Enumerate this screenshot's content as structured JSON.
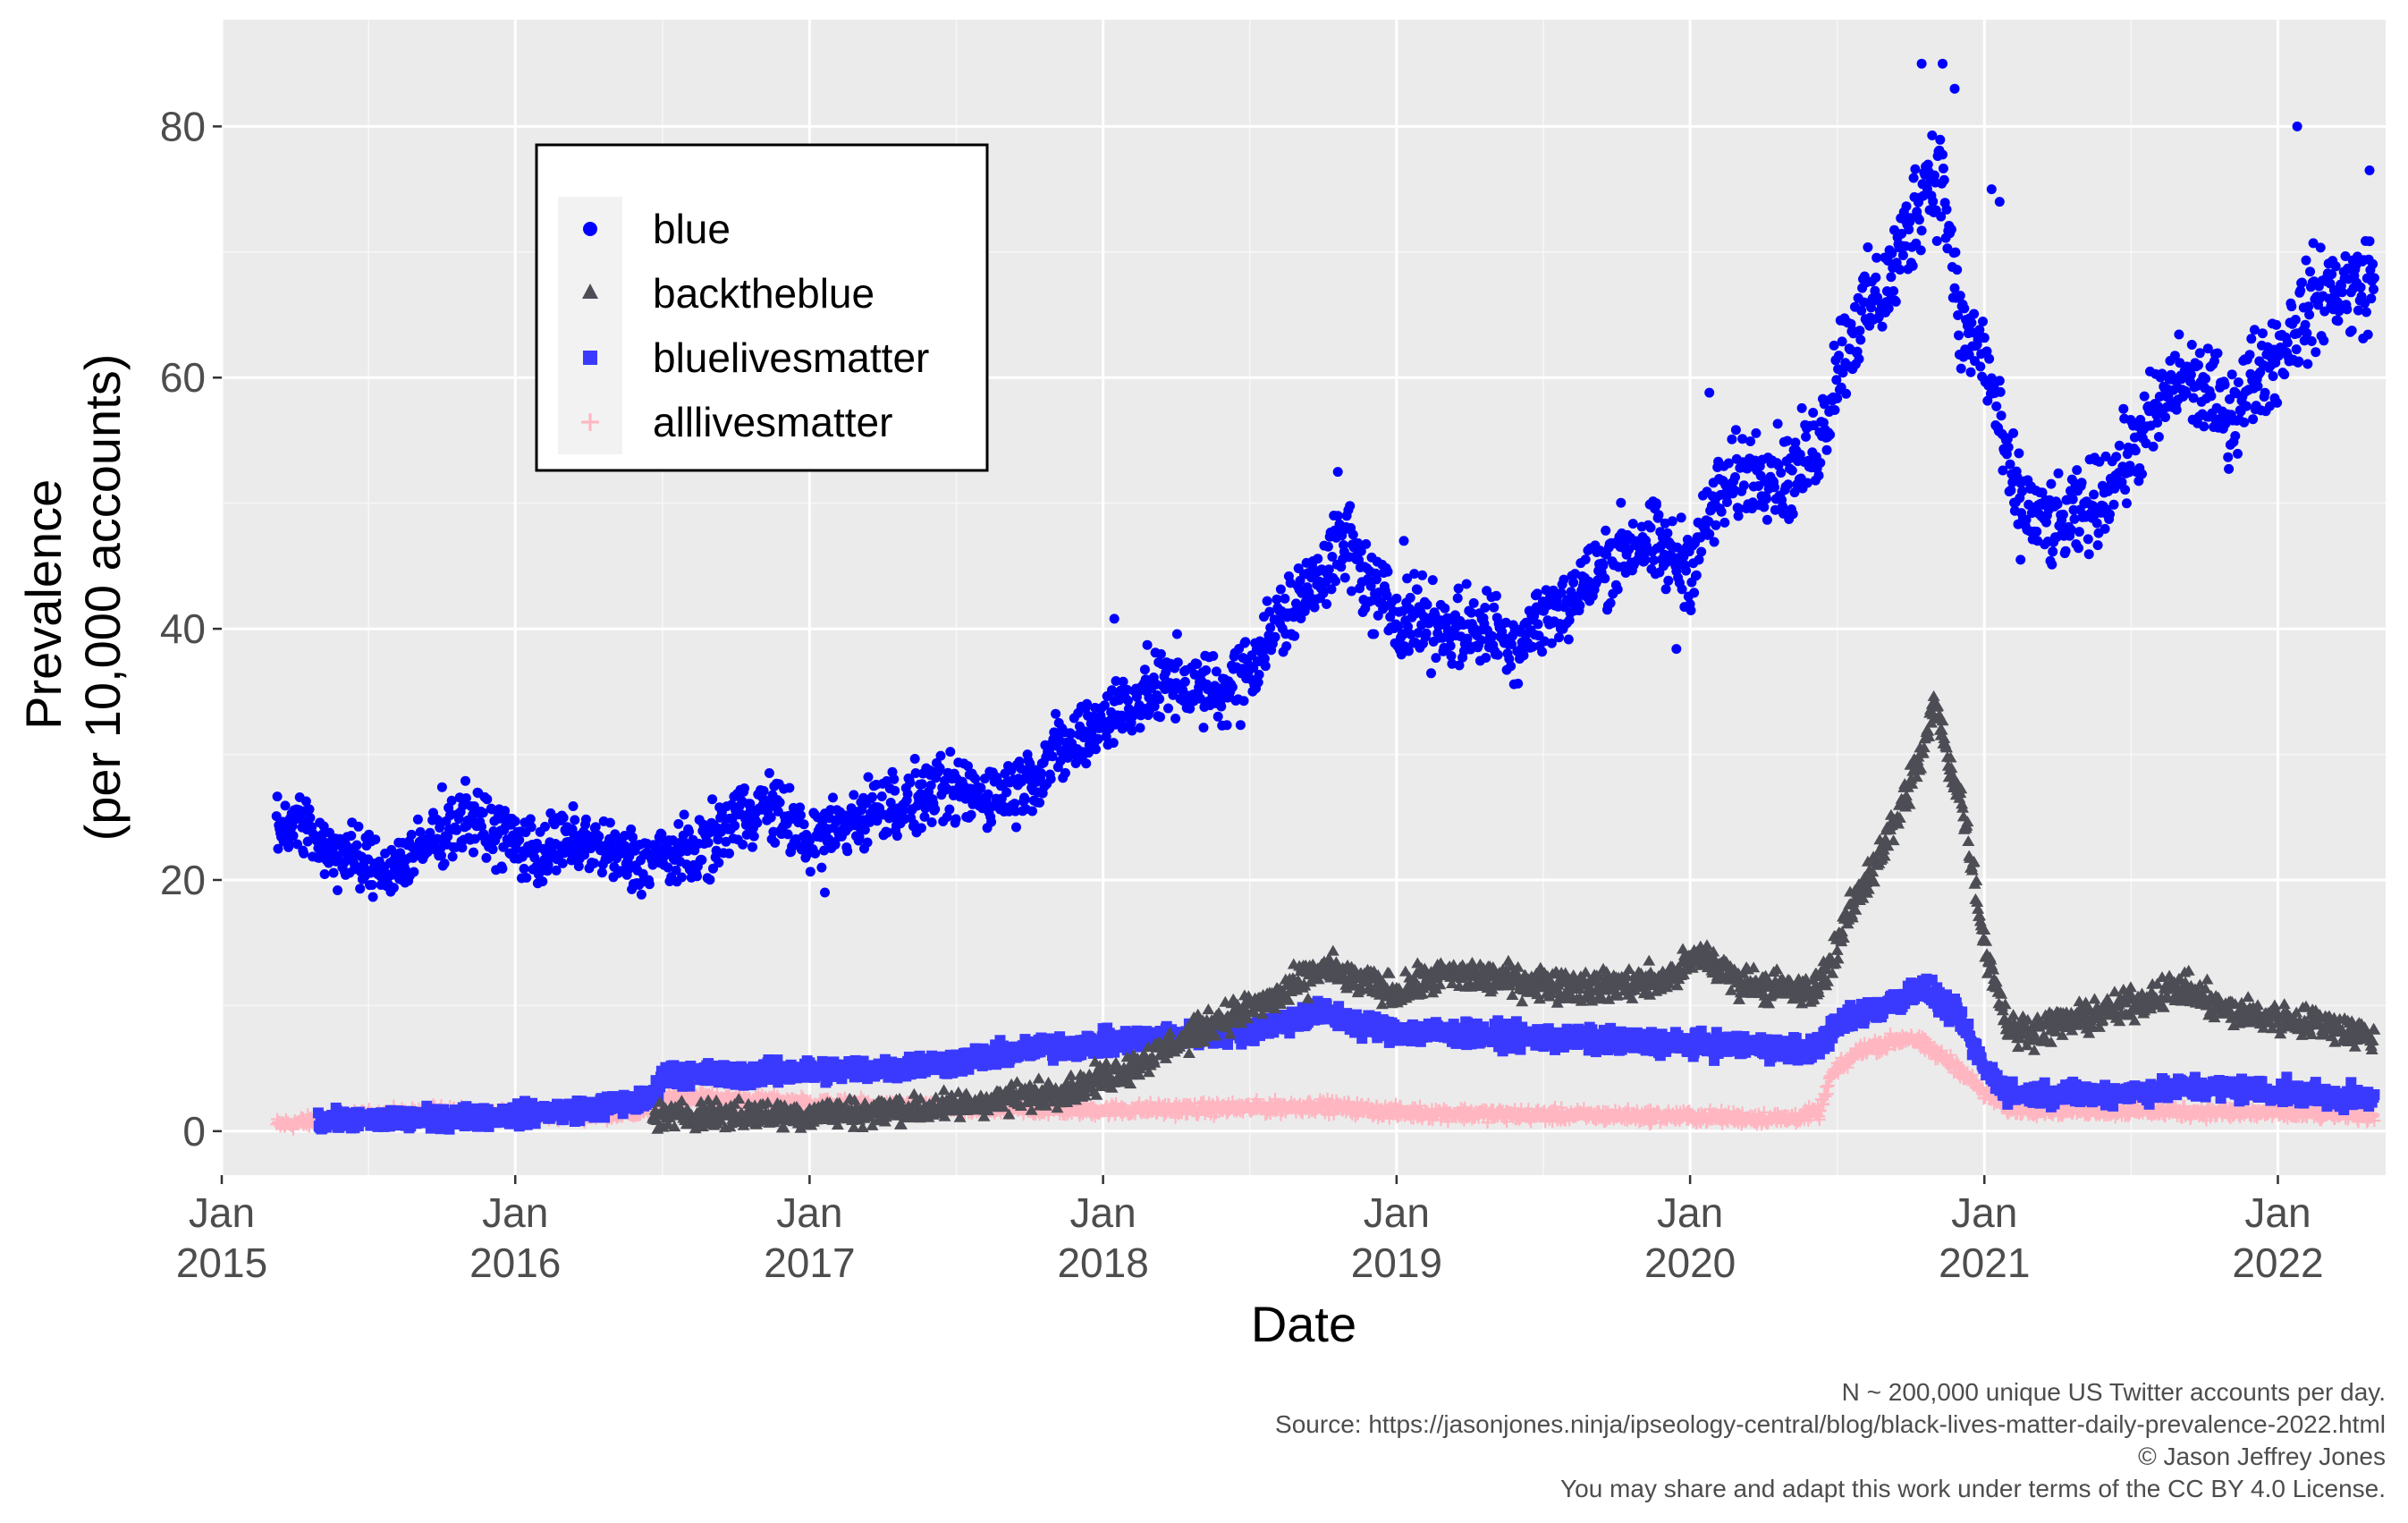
{
  "chart_data": {
    "type": "scatter",
    "title": "",
    "xlabel": "Date",
    "ylabel_lines": [
      "Prevalence",
      "(per 10,000 accounts)"
    ],
    "x_range": [
      "2015-01-01",
      "2022-05-15"
    ],
    "ylim": [
      -3.5,
      88.5
    ],
    "y_ticks": [
      0,
      20,
      40,
      60,
      80
    ],
    "x_ticks": [
      {
        "date": "2015-01-01",
        "month": "Jan",
        "year": "2015"
      },
      {
        "date": "2016-01-01",
        "month": "Jan",
        "year": "2016"
      },
      {
        "date": "2017-01-01",
        "month": "Jan",
        "year": "2017"
      },
      {
        "date": "2018-01-01",
        "month": "Jan",
        "year": "2018"
      },
      {
        "date": "2019-01-01",
        "month": "Jan",
        "year": "2019"
      },
      {
        "date": "2020-01-01",
        "month": "Jan",
        "year": "2020"
      },
      {
        "date": "2021-01-01",
        "month": "Jan",
        "year": "2021"
      },
      {
        "date": "2022-01-01",
        "month": "Jan",
        "year": "2022"
      }
    ],
    "grid": true,
    "legend_position": "top-left inside",
    "series": [
      {
        "name": "blue",
        "marker": "circle",
        "color": "#0000ff",
        "points": [
          [
            "2015-03-10",
            24
          ],
          [
            "2015-04-01",
            25
          ],
          [
            "2015-05-01",
            23
          ],
          [
            "2015-06-01",
            22
          ],
          [
            "2015-07-01",
            21
          ],
          [
            "2015-08-01",
            21
          ],
          [
            "2015-09-01",
            22
          ],
          [
            "2015-10-01",
            24
          ],
          [
            "2015-11-01",
            25
          ],
          [
            "2015-12-01",
            24
          ],
          [
            "2016-01-01",
            23
          ],
          [
            "2016-02-01",
            22
          ],
          [
            "2016-03-01",
            23
          ],
          [
            "2016-04-01",
            23
          ],
          [
            "2016-05-01",
            22
          ],
          [
            "2016-06-01",
            21.5
          ],
          [
            "2016-07-01",
            22
          ],
          [
            "2016-08-01",
            22
          ],
          [
            "2016-09-01",
            23
          ],
          [
            "2016-10-01",
            25
          ],
          [
            "2016-11-01",
            26
          ],
          [
            "2016-12-01",
            25
          ],
          [
            "2017-01-01",
            23
          ],
          [
            "2017-02-01",
            24
          ],
          [
            "2017-03-01",
            25
          ],
          [
            "2017-04-01",
            26
          ],
          [
            "2017-05-01",
            26
          ],
          [
            "2017-06-01",
            27
          ],
          [
            "2017-07-01",
            27
          ],
          [
            "2017-08-01",
            27
          ],
          [
            "2017-09-01",
            27
          ],
          [
            "2017-10-01",
            28
          ],
          [
            "2017-11-01",
            30
          ],
          [
            "2017-12-01",
            31
          ],
          [
            "2018-01-01",
            33
          ],
          [
            "2018-02-01",
            34
          ],
          [
            "2018-03-01",
            35
          ],
          [
            "2018-04-01",
            36
          ],
          [
            "2018-05-01",
            35
          ],
          [
            "2018-06-01",
            35
          ],
          [
            "2018-07-01",
            37
          ],
          [
            "2018-08-01",
            40
          ],
          [
            "2018-09-01",
            42
          ],
          [
            "2018-10-01",
            45
          ],
          [
            "2018-11-01",
            47
          ],
          [
            "2018-12-01",
            43
          ],
          [
            "2019-01-01",
            41
          ],
          [
            "2019-02-01",
            41
          ],
          [
            "2019-03-01",
            40
          ],
          [
            "2019-04-01",
            40
          ],
          [
            "2019-05-01",
            40
          ],
          [
            "2019-06-01",
            39
          ],
          [
            "2019-07-01",
            41
          ],
          [
            "2019-08-01",
            42
          ],
          [
            "2019-09-01",
            44
          ],
          [
            "2019-10-01",
            46
          ],
          [
            "2019-11-01",
            47
          ],
          [
            "2019-12-01",
            46
          ],
          [
            "2020-01-01",
            45
          ],
          [
            "2020-02-01",
            50
          ],
          [
            "2020-03-01",
            52
          ],
          [
            "2020-04-01",
            53
          ],
          [
            "2020-05-01",
            52
          ],
          [
            "2020-06-01",
            54
          ],
          [
            "2020-06-20",
            57
          ],
          [
            "2020-07-01",
            61
          ],
          [
            "2020-08-01",
            65
          ],
          [
            "2020-09-01",
            67
          ],
          [
            "2020-10-01",
            72
          ],
          [
            "2020-10-20",
            76
          ],
          [
            "2020-11-10",
            76
          ],
          [
            "2020-12-01",
            64
          ],
          [
            "2021-01-01",
            62
          ],
          [
            "2021-02-01",
            52
          ],
          [
            "2021-03-01",
            49
          ],
          [
            "2021-04-01",
            48
          ],
          [
            "2021-05-01",
            49
          ],
          [
            "2021-06-01",
            51
          ],
          [
            "2021-07-01",
            54
          ],
          [
            "2021-08-01",
            57
          ],
          [
            "2021-09-01",
            60
          ],
          [
            "2021-10-01",
            59
          ],
          [
            "2021-11-01",
            57
          ],
          [
            "2021-12-01",
            60
          ],
          [
            "2022-01-01",
            62
          ],
          [
            "2022-02-01",
            65
          ],
          [
            "2022-03-01",
            67
          ],
          [
            "2022-04-01",
            67
          ],
          [
            "2022-05-01",
            68
          ]
        ],
        "spread": 1.6,
        "outliers": [
          [
            "2017-01-20",
            19
          ],
          [
            "2018-01-15",
            40.8
          ],
          [
            "2018-10-20",
            52.5
          ],
          [
            "2019-01-10",
            47
          ],
          [
            "2019-11-20",
            50
          ],
          [
            "2019-12-15",
            38.4
          ],
          [
            "2020-01-25",
            58.8
          ],
          [
            "2020-10-15",
            85
          ],
          [
            "2020-11-10",
            85
          ],
          [
            "2020-11-25",
            83
          ],
          [
            "2021-01-10",
            75
          ],
          [
            "2021-01-20",
            74
          ],
          [
            "2021-02-15",
            45.5
          ],
          [
            "2022-01-25",
            80
          ],
          [
            "2022-04-25",
            76.5
          ]
        ]
      },
      {
        "name": "backtheblue",
        "marker": "triangle",
        "color": "#4d4d55",
        "points": [
          [
            "2016-06-20",
            1.2
          ],
          [
            "2016-09-01",
            1.3
          ],
          [
            "2016-12-01",
            1.3
          ],
          [
            "2017-03-01",
            1.5
          ],
          [
            "2017-06-01",
            1.8
          ],
          [
            "2017-09-01",
            2.5
          ],
          [
            "2017-12-01",
            3.5
          ],
          [
            "2018-02-01",
            5
          ],
          [
            "2018-04-01",
            7
          ],
          [
            "2018-06-01",
            9
          ],
          [
            "2018-08-01",
            10.5
          ],
          [
            "2018-10-01",
            13
          ],
          [
            "2018-11-15",
            12
          ],
          [
            "2019-01-01",
            11
          ],
          [
            "2019-03-01",
            12.5
          ],
          [
            "2019-06-01",
            12
          ],
          [
            "2019-09-01",
            11.5
          ],
          [
            "2019-12-01",
            12
          ],
          [
            "2020-01-15",
            14
          ],
          [
            "2020-03-01",
            12
          ],
          [
            "2020-06-01",
            11
          ],
          [
            "2020-06-20",
            13
          ],
          [
            "2020-07-15",
            17
          ],
          [
            "2020-08-15",
            21
          ],
          [
            "2020-09-15",
            25
          ],
          [
            "2020-10-15",
            30
          ],
          [
            "2020-11-01",
            34
          ],
          [
            "2020-11-15",
            30
          ],
          [
            "2020-12-01",
            27
          ],
          [
            "2020-12-15",
            22
          ],
          [
            "2021-01-01",
            15
          ],
          [
            "2021-02-01",
            8
          ],
          [
            "2021-03-01",
            8
          ],
          [
            "2021-05-01",
            9
          ],
          [
            "2021-07-01",
            10
          ],
          [
            "2021-09-01",
            11.5
          ],
          [
            "2021-11-01",
            9.5
          ],
          [
            "2022-01-01",
            9
          ],
          [
            "2022-03-01",
            8.5
          ],
          [
            "2022-05-01",
            7.5
          ]
        ],
        "spread": 0.9
      },
      {
        "name": "bluelivesmatter",
        "marker": "square",
        "color": "#3a3aff",
        "points": [
          [
            "2015-05-01",
            0.8
          ],
          [
            "2015-09-01",
            1.0
          ],
          [
            "2016-01-01",
            1.3
          ],
          [
            "2016-04-01",
            1.8
          ],
          [
            "2016-06-20",
            2.5
          ],
          [
            "2016-07-01",
            4.5
          ],
          [
            "2016-10-01",
            4.5
          ],
          [
            "2017-01-01",
            4.8
          ],
          [
            "2017-04-01",
            5
          ],
          [
            "2017-07-01",
            5.5
          ],
          [
            "2017-10-01",
            6.5
          ],
          [
            "2018-01-01",
            7
          ],
          [
            "2018-04-01",
            7.5
          ],
          [
            "2018-07-01",
            8
          ],
          [
            "2018-10-01",
            9.5
          ],
          [
            "2018-11-15",
            8.5
          ],
          [
            "2019-01-01",
            8
          ],
          [
            "2019-06-01",
            7.5
          ],
          [
            "2019-12-01",
            7
          ],
          [
            "2020-03-01",
            6.8
          ],
          [
            "2020-06-01",
            6.5
          ],
          [
            "2020-07-15",
            9
          ],
          [
            "2020-09-01",
            10
          ],
          [
            "2020-10-15",
            11.5
          ],
          [
            "2020-12-01",
            9
          ],
          [
            "2021-01-01",
            5
          ],
          [
            "2021-02-01",
            3
          ],
          [
            "2021-06-01",
            3
          ],
          [
            "2021-10-01",
            3.5
          ],
          [
            "2022-02-01",
            3
          ],
          [
            "2022-05-01",
            2.5
          ]
        ],
        "spread": 0.7
      },
      {
        "name": "alllivesmatter",
        "marker": "plus",
        "color": "#ffb6c1",
        "points": [
          [
            "2015-03-10",
            0.5
          ],
          [
            "2015-07-01",
            1.2
          ],
          [
            "2015-10-01",
            1.5
          ],
          [
            "2016-01-01",
            1.2
          ],
          [
            "2016-06-01",
            1.5
          ],
          [
            "2016-07-15",
            2.8
          ],
          [
            "2016-10-01",
            2.5
          ],
          [
            "2017-01-01",
            2.2
          ],
          [
            "2017-06-01",
            1.8
          ],
          [
            "2018-01-01",
            1.7
          ],
          [
            "2018-06-01",
            1.8
          ],
          [
            "2018-10-01",
            2
          ],
          [
            "2019-01-01",
            1.5
          ],
          [
            "2019-06-01",
            1.3
          ],
          [
            "2019-12-01",
            1.2
          ],
          [
            "2020-05-01",
            1
          ],
          [
            "2020-06-10",
            1.5
          ],
          [
            "2020-06-25",
            4.5
          ],
          [
            "2020-08-01",
            6.5
          ],
          [
            "2020-10-01",
            7.5
          ],
          [
            "2020-12-01",
            5
          ],
          [
            "2021-01-01",
            3
          ],
          [
            "2021-02-01",
            1.8
          ],
          [
            "2021-08-01",
            1.6
          ],
          [
            "2022-02-01",
            1.4
          ],
          [
            "2022-05-01",
            1.3
          ]
        ],
        "spread": 0.45
      }
    ]
  },
  "caption": {
    "lines": [
      "N ~ 200,000 unique US Twitter accounts per day.",
      "Source: https://jasonjones.ninja/ipseology-central/blog/black-lives-matter-daily-prevalence-2022.html",
      "© Jason Jeffrey Jones",
      "You may share and adapt this work under terms of the CC BY 4.0 License."
    ]
  }
}
